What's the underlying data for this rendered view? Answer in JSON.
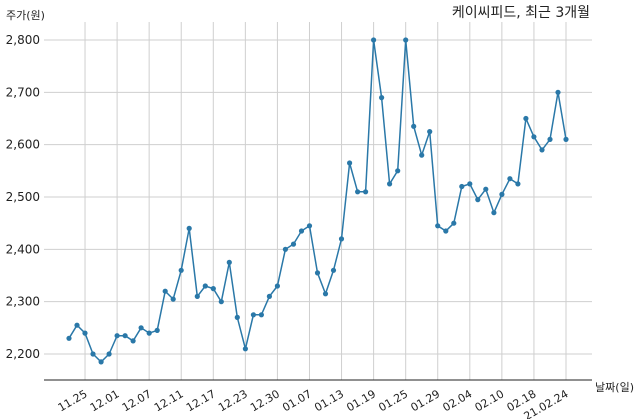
{
  "chart_data": {
    "type": "line",
    "title": "케이씨피드, 최근 3개월",
    "ylabel": "주가(원)",
    "xlabel": "날짜(일)",
    "ylim": [
      2150,
      2820
    ],
    "yticks": [
      2200,
      2300,
      2400,
      2500,
      2600,
      2700,
      2800
    ],
    "ytick_labels": [
      "2,200",
      "2,300",
      "2,400",
      "2,500",
      "2,600",
      "2,700",
      "2,800"
    ],
    "xtick_labels": [
      "11.25",
      "12.01",
      "12.07",
      "12.11",
      "12.17",
      "12.23",
      "12.30",
      "01.07",
      "01.13",
      "01.19",
      "01.25",
      "01.29",
      "02.04",
      "02.10",
      "02.18",
      "21.02.24"
    ],
    "grid": true,
    "series": [
      {
        "values": [
          2230,
          2255,
          2240,
          2200,
          2185,
          2200,
          2235,
          2235,
          2225,
          2250,
          2240,
          2245,
          2320,
          2305,
          2360,
          2440,
          2310,
          2330,
          2325,
          2300,
          2375,
          2270,
          2210,
          2275,
          2275,
          2310,
          2330,
          2400,
          2410,
          2435,
          2445,
          2355,
          2315,
          2360,
          2420,
          2565,
          2510,
          2510,
          2800,
          2690,
          2525,
          2550,
          2800,
          2635,
          2580,
          2625,
          2445,
          2435,
          2450,
          2520,
          2525,
          2495,
          2515,
          2470,
          2505,
          2535,
          2525,
          2650,
          2615,
          2590,
          2610,
          2700,
          2610
        ]
      }
    ],
    "colors": {
      "series": "#2a78a8",
      "grid": "#cfcfcf"
    }
  }
}
